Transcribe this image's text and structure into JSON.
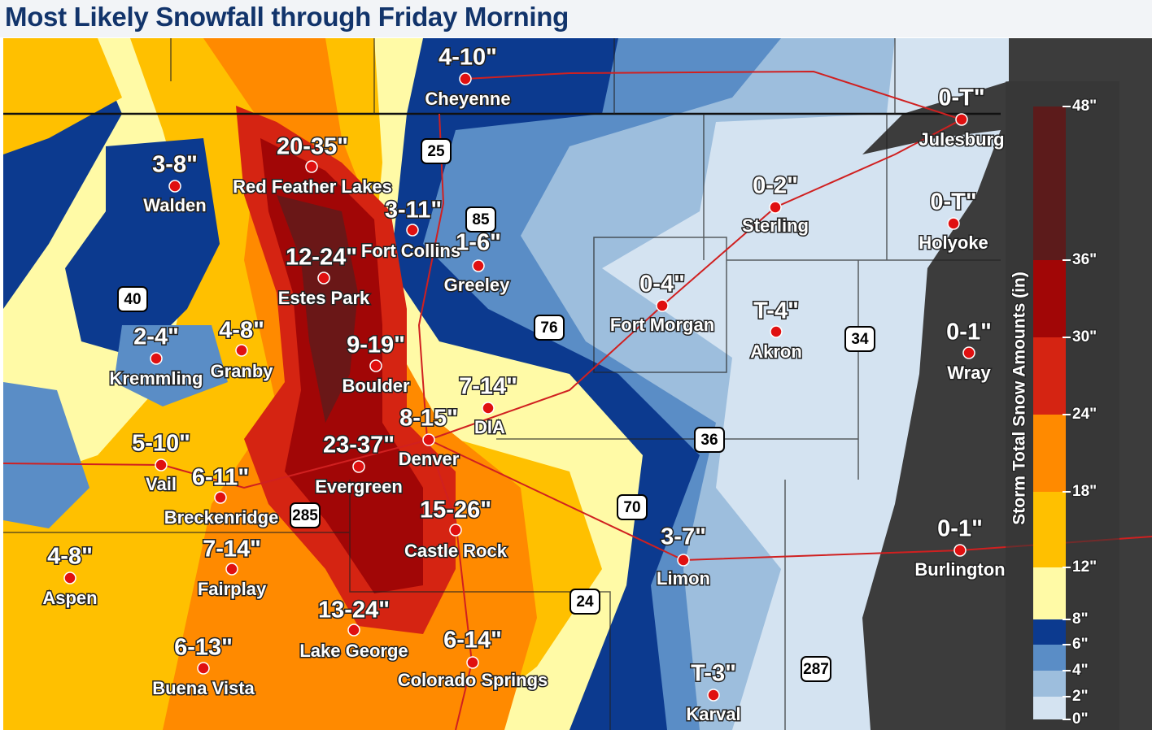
{
  "title": "Most Likely Snowfall through Friday Morning",
  "cities": [
    {
      "name": "Cheyenne",
      "amount": "4-10\""
    },
    {
      "name": "Julesburg",
      "amount": "0-T\""
    },
    {
      "name": "Walden",
      "amount": "3-8\""
    },
    {
      "name": "Red Feather Lakes",
      "amount": "20-35\""
    },
    {
      "name": "Fort Collins",
      "amount": "3-11\""
    },
    {
      "name": "Greeley",
      "amount": "1-6\""
    },
    {
      "name": "Estes Park",
      "amount": "12-24\""
    },
    {
      "name": "Sterling",
      "amount": "0-2\""
    },
    {
      "name": "Holyoke",
      "amount": "0-T\""
    },
    {
      "name": "Fort Morgan",
      "amount": "0-4\""
    },
    {
      "name": "Akron",
      "amount": "T-4\""
    },
    {
      "name": "Wray",
      "amount": "0-1\""
    },
    {
      "name": "Kremmling",
      "amount": "2-4\""
    },
    {
      "name": "Granby",
      "amount": "4-8\""
    },
    {
      "name": "Boulder",
      "amount": "9-19\""
    },
    {
      "name": "DIA",
      "amount": "7-14\""
    },
    {
      "name": "Denver",
      "amount": "8-15\""
    },
    {
      "name": "Evergreen",
      "amount": "23-37\""
    },
    {
      "name": "Vail",
      "amount": "5-10\""
    },
    {
      "name": "Breckenridge",
      "amount": "6-11\""
    },
    {
      "name": "Castle Rock",
      "amount": "15-26\""
    },
    {
      "name": "Limon",
      "amount": "3-7\""
    },
    {
      "name": "Burlington",
      "amount": "0-1\""
    },
    {
      "name": "Aspen",
      "amount": "4-8\""
    },
    {
      "name": "Fairplay",
      "amount": "7-14\""
    },
    {
      "name": "Lake George",
      "amount": "13-24\""
    },
    {
      "name": "Colorado Springs",
      "amount": "6-14\""
    },
    {
      "name": "Buena Vista",
      "amount": "6-13\""
    },
    {
      "name": "Karval",
      "amount": "T-3\""
    }
  ],
  "highways": [
    "25",
    "85",
    "40",
    "76",
    "36",
    "70",
    "285",
    "24",
    "34",
    "287"
  ],
  "legend": {
    "title": "Storm Total Snow Amounts (in)",
    "labels": [
      "0\"",
      "2\"",
      "4\"",
      "6\"",
      "8\"",
      "12\"",
      "18\"",
      "24\"",
      "30\"",
      "36\"",
      "48\""
    ],
    "colors": [
      "#d4e3f1",
      "#9dbedd",
      "#5a8dc6",
      "#0c3a8f",
      "#fffaa6",
      "#ffc000",
      "#ff8a00",
      "#d52412",
      "#a10606",
      "#5c1b1b"
    ]
  }
}
